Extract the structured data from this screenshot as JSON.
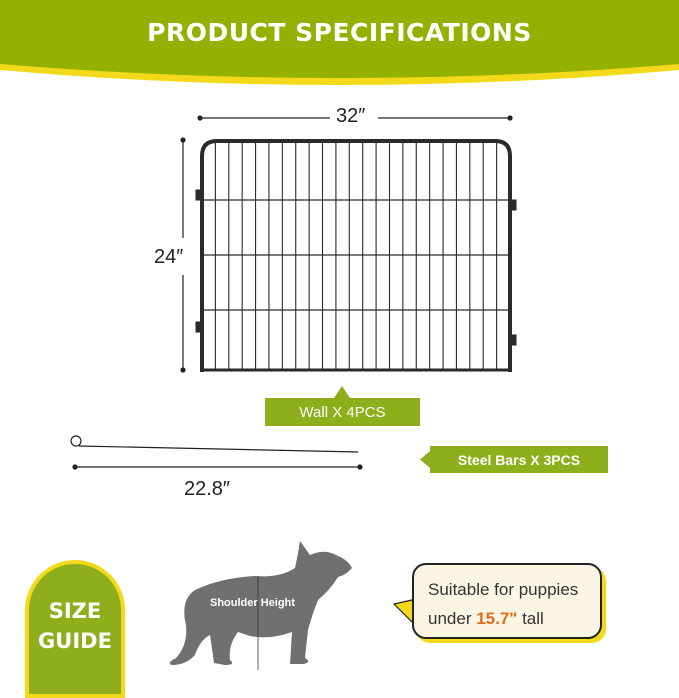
{
  "header": {
    "title": "PRODUCT SPECIFICATIONS"
  },
  "panel": {
    "width": "32″",
    "height": "24″",
    "label": "Wall X 4PCS"
  },
  "steel_bar": {
    "length": "22.8″",
    "label": "Steel Bars X 3PCS"
  },
  "size_guide": {
    "line1": "SIZE",
    "line2": "GUIDE",
    "dog_label": "Shoulder Height"
  },
  "callout": {
    "text1": "Suitable for puppies",
    "text2_pre": "under ",
    "highlight": "15.7\"",
    "text2_post": " tall"
  },
  "colors": {
    "green": "#8fae1b",
    "yellow": "#f2d91a",
    "orange": "#e8691c",
    "dog": "#707070"
  }
}
